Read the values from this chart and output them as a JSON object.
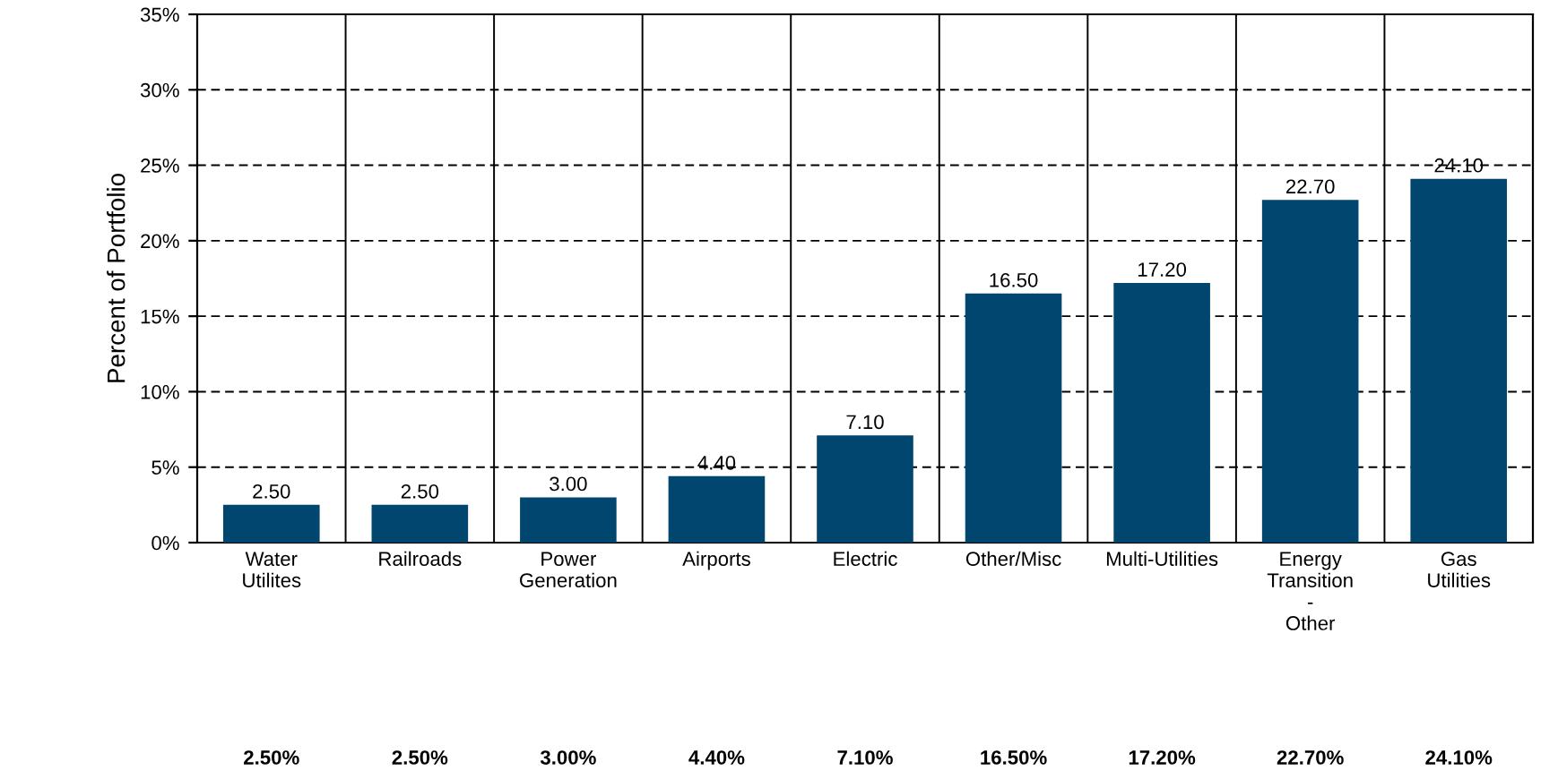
{
  "chart_data": {
    "type": "bar",
    "ylabel": "Percent of Portfolio",
    "categories": [
      "Water\nUtilites",
      "Railroads",
      "Power\nGeneration",
      "Airports",
      "Electric",
      "Other/Misc",
      "Multi-Utilities",
      "Energy\nTransition\n-\nOther",
      "Gas\nUtilities"
    ],
    "values": [
      2.5,
      2.5,
      3.0,
      4.4,
      7.1,
      16.5,
      17.2,
      22.7,
      24.1
    ],
    "value_labels": [
      "2.50",
      "2.50",
      "3.00",
      "4.40",
      "7.10",
      "16.50",
      "17.20",
      "22.70",
      "24.10"
    ],
    "color": "#00466e",
    "ylim": [
      0,
      35
    ],
    "yticks": [
      {
        "value": 0,
        "label": "0%"
      },
      {
        "value": 5,
        "label": "5%"
      },
      {
        "value": 10,
        "label": "10%"
      },
      {
        "value": 15,
        "label": "15%"
      },
      {
        "value": 20,
        "label": "20%"
      },
      {
        "value": 25,
        "label": "25%"
      },
      {
        "value": 30,
        "label": "30%"
      },
      {
        "value": 35,
        "label": "35%"
      }
    ],
    "grid": true,
    "annotations": [
      "2.50%",
      "2.50%",
      "3.00%",
      "4.40%",
      "7.10%",
      "16.50%",
      "17.20%",
      "22.70%",
      "24.10%"
    ]
  }
}
